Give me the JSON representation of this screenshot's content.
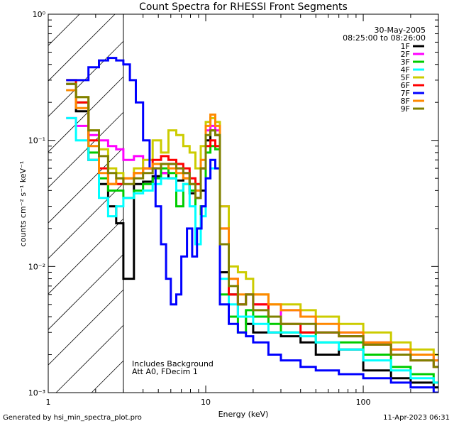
{
  "chart_data": {
    "type": "line",
    "title": "Count Spectra for RHESSI Front Segments",
    "xlabel": "Energy (keV)",
    "ylabel": "counts cm⁻² s⁻¹ keV⁻¹",
    "xscale": "log",
    "yscale": "log",
    "xlim": [
      1,
      300
    ],
    "ylim": [
      0.001,
      1
    ],
    "xticks": [
      {
        "value": 1,
        "label": "1"
      },
      {
        "value": 10,
        "label": "10"
      },
      {
        "value": 100,
        "label": "100"
      }
    ],
    "yticks": [
      {
        "value": 0.001,
        "label": "10⁻³"
      },
      {
        "value": 0.01,
        "label": "10⁻²"
      },
      {
        "value": 0.1,
        "label": "10⁻¹"
      },
      {
        "value": 1,
        "label": "10⁰"
      }
    ],
    "shaded_region": {
      "from": 1,
      "to": 3,
      "style": "hatched"
    },
    "date": "30-May-2005",
    "time_range": "08:25:00 to 08:26:00",
    "notes": [
      "Includes Background",
      "Att A0, FDecim 1"
    ],
    "series": [
      {
        "name": "1F",
        "color": "#000000",
        "x": [
          1.3,
          1.5,
          1.8,
          2.1,
          2.4,
          2.7,
          3.0,
          3.5,
          4.0,
          4.6,
          5.2,
          5.8,
          6.5,
          7.2,
          7.9,
          8.6,
          9.3,
          10.0,
          10.7,
          11.5,
          12.3,
          14,
          16,
          18,
          20,
          25,
          30,
          40,
          50,
          70,
          100,
          150,
          200,
          280
        ],
        "y": [
          0.28,
          0.17,
          0.07,
          0.045,
          0.03,
          0.022,
          0.008,
          0.045,
          0.047,
          0.052,
          0.055,
          0.05,
          0.048,
          0.05,
          0.038,
          0.035,
          0.04,
          0.1,
          0.12,
          0.11,
          0.009,
          0.006,
          0.004,
          0.0035,
          0.003,
          0.003,
          0.0028,
          0.0025,
          0.002,
          0.0022,
          0.0015,
          0.0013,
          0.0012,
          0.0011
        ]
      },
      {
        "name": "2F",
        "color": "#ff00ff",
        "x": [
          1.3,
          1.5,
          1.8,
          2.1,
          2.4,
          2.7,
          3.0,
          3.5,
          4.0,
          4.6,
          5.2,
          5.8,
          6.5,
          7.2,
          7.9,
          8.6,
          9.3,
          10.0,
          10.7,
          11.5,
          12.3,
          14,
          16,
          18,
          20,
          25,
          30,
          40,
          50,
          70,
          100,
          150,
          200,
          280
        ],
        "y": [
          0.15,
          0.13,
          0.11,
          0.1,
          0.09,
          0.085,
          0.07,
          0.075,
          0.06,
          0.06,
          0.055,
          0.065,
          0.06,
          0.055,
          0.05,
          0.04,
          0.06,
          0.12,
          0.13,
          0.12,
          0.03,
          0.008,
          0.005,
          0.006,
          0.005,
          0.004,
          0.0045,
          0.004,
          0.003,
          0.003,
          0.0025,
          0.0022,
          0.002,
          0.0018
        ]
      },
      {
        "name": "3F",
        "color": "#00cc00",
        "x": [
          1.3,
          1.5,
          1.8,
          2.1,
          2.4,
          2.7,
          3.0,
          3.5,
          4.0,
          4.6,
          5.2,
          5.8,
          6.5,
          7.2,
          7.9,
          8.6,
          9.3,
          10.0,
          10.7,
          11.5,
          12.3,
          14,
          16,
          18,
          20,
          25,
          30,
          40,
          50,
          70,
          100,
          150,
          200,
          280
        ],
        "y": [
          0.25,
          0.2,
          0.08,
          0.05,
          0.04,
          0.04,
          0.035,
          0.04,
          0.045,
          0.05,
          0.06,
          0.055,
          0.03,
          0.045,
          0.04,
          0.02,
          0.03,
          0.08,
          0.09,
          0.085,
          0.006,
          0.004,
          0.003,
          0.0045,
          0.004,
          0.0035,
          0.003,
          0.003,
          0.0025,
          0.0025,
          0.002,
          0.0016,
          0.0014,
          0.0012
        ]
      },
      {
        "name": "4F",
        "color": "#00ffff",
        "x": [
          1.3,
          1.5,
          1.8,
          2.1,
          2.4,
          2.7,
          3.0,
          3.5,
          4.0,
          4.6,
          5.2,
          5.8,
          6.5,
          7.2,
          7.9,
          8.6,
          9.3,
          10.0,
          10.7,
          11.5,
          12.3,
          14,
          16,
          18,
          20,
          25,
          30,
          40,
          50,
          70,
          100,
          150,
          200,
          280
        ],
        "y": [
          0.15,
          0.1,
          0.07,
          0.035,
          0.025,
          0.03,
          0.035,
          0.038,
          0.04,
          0.045,
          0.05,
          0.05,
          0.04,
          0.045,
          0.03,
          0.015,
          0.025,
          0.05,
          0.06,
          0.06,
          0.008,
          0.005,
          0.004,
          0.004,
          0.0035,
          0.003,
          0.003,
          0.0028,
          0.0025,
          0.0022,
          0.0018,
          0.0015,
          0.0013,
          0.0012
        ]
      },
      {
        "name": "5F",
        "color": "#cccc00",
        "x": [
          1.3,
          1.5,
          1.8,
          2.1,
          2.4,
          2.7,
          3.0,
          3.5,
          4.0,
          4.6,
          5.2,
          5.8,
          6.5,
          7.2,
          7.9,
          8.6,
          9.3,
          10.0,
          10.7,
          11.5,
          12.3,
          14,
          16,
          18,
          20,
          25,
          30,
          40,
          50,
          70,
          100,
          150,
          200,
          280
        ],
        "y": [
          0.3,
          0.22,
          0.12,
          0.085,
          0.06,
          0.055,
          0.05,
          0.06,
          0.07,
          0.1,
          0.08,
          0.12,
          0.11,
          0.09,
          0.08,
          0.06,
          0.09,
          0.14,
          0.15,
          0.14,
          0.03,
          0.01,
          0.009,
          0.008,
          0.006,
          0.005,
          0.005,
          0.0045,
          0.004,
          0.0035,
          0.003,
          0.0025,
          0.0022,
          0.002
        ]
      },
      {
        "name": "6F",
        "color": "#ff0000",
        "x": [
          1.3,
          1.5,
          1.8,
          2.1,
          2.4,
          2.7,
          3.0,
          3.5,
          4.0,
          4.6,
          5.2,
          5.8,
          6.5,
          7.2,
          7.9,
          8.6,
          9.3,
          10.0,
          10.7,
          11.5,
          12.3,
          14,
          16,
          18,
          20,
          25,
          30,
          40,
          50,
          70,
          100,
          150,
          200,
          280
        ],
        "y": [
          0.3,
          0.2,
          0.1,
          0.06,
          0.045,
          0.045,
          0.05,
          0.055,
          0.06,
          0.07,
          0.075,
          0.07,
          0.065,
          0.06,
          0.05,
          0.045,
          0.06,
          0.09,
          0.1,
          0.09,
          0.02,
          0.006,
          0.005,
          0.006,
          0.005,
          0.004,
          0.0035,
          0.003,
          0.003,
          0.0028,
          0.0024,
          0.002,
          0.0018,
          0.0016
        ]
      },
      {
        "name": "7F",
        "color": "#0000ff",
        "x": [
          1.3,
          1.5,
          1.8,
          2.1,
          2.4,
          2.7,
          3.0,
          3.3,
          3.6,
          4.0,
          4.4,
          4.8,
          5.2,
          5.6,
          6.0,
          6.5,
          7.0,
          7.6,
          8.2,
          8.8,
          9.4,
          10.0,
          10.7,
          11.5,
          12.3,
          14,
          16,
          18,
          20,
          25,
          30,
          40,
          50,
          70,
          100,
          150,
          200,
          280
        ],
        "y": [
          0.3,
          0.3,
          0.38,
          0.43,
          0.45,
          0.43,
          0.4,
          0.3,
          0.2,
          0.1,
          0.06,
          0.03,
          0.015,
          0.008,
          0.005,
          0.006,
          0.012,
          0.02,
          0.012,
          0.02,
          0.03,
          0.05,
          0.07,
          0.06,
          0.005,
          0.0035,
          0.003,
          0.0028,
          0.0025,
          0.002,
          0.0018,
          0.0016,
          0.0015,
          0.0014,
          0.0013,
          0.0012,
          0.0011,
          0.001
        ]
      },
      {
        "name": "8F",
        "color": "#ff8800",
        "x": [
          1.3,
          1.5,
          1.8,
          2.1,
          2.4,
          2.7,
          3.0,
          3.5,
          4.0,
          4.6,
          5.2,
          5.8,
          6.5,
          7.2,
          7.9,
          8.6,
          9.3,
          10.0,
          10.7,
          11.5,
          12.3,
          14,
          16,
          18,
          20,
          25,
          30,
          40,
          50,
          70,
          100,
          150,
          200,
          280
        ],
        "y": [
          0.25,
          0.18,
          0.09,
          0.055,
          0.045,
          0.05,
          0.05,
          0.055,
          0.06,
          0.065,
          0.065,
          0.06,
          0.055,
          0.05,
          0.045,
          0.04,
          0.07,
          0.13,
          0.16,
          0.13,
          0.02,
          0.008,
          0.006,
          0.006,
          0.006,
          0.005,
          0.0045,
          0.004,
          0.0035,
          0.003,
          0.0025,
          0.0022,
          0.002,
          0.0018
        ]
      },
      {
        "name": "9F",
        "color": "#808000",
        "x": [
          1.3,
          1.5,
          1.8,
          2.1,
          2.4,
          2.7,
          3.0,
          3.5,
          4.0,
          4.6,
          5.2,
          5.8,
          6.5,
          7.2,
          7.9,
          8.6,
          9.3,
          10.0,
          10.7,
          11.5,
          12.3,
          14,
          16,
          18,
          20,
          25,
          30,
          40,
          50,
          70,
          100,
          150,
          200,
          280
        ],
        "y": [
          0.28,
          0.22,
          0.12,
          0.075,
          0.055,
          0.05,
          0.045,
          0.05,
          0.055,
          0.06,
          0.065,
          0.065,
          0.06,
          0.055,
          0.045,
          0.035,
          0.06,
          0.11,
          0.12,
          0.11,
          0.015,
          0.007,
          0.005,
          0.006,
          0.0045,
          0.004,
          0.0035,
          0.0035,
          0.003,
          0.0028,
          0.0024,
          0.002,
          0.0018,
          0.0016
        ]
      }
    ]
  },
  "footer": {
    "left": "Generated by hsi_min_spectra_plot.pro",
    "right": "11-Apr-2023 06:31"
  }
}
